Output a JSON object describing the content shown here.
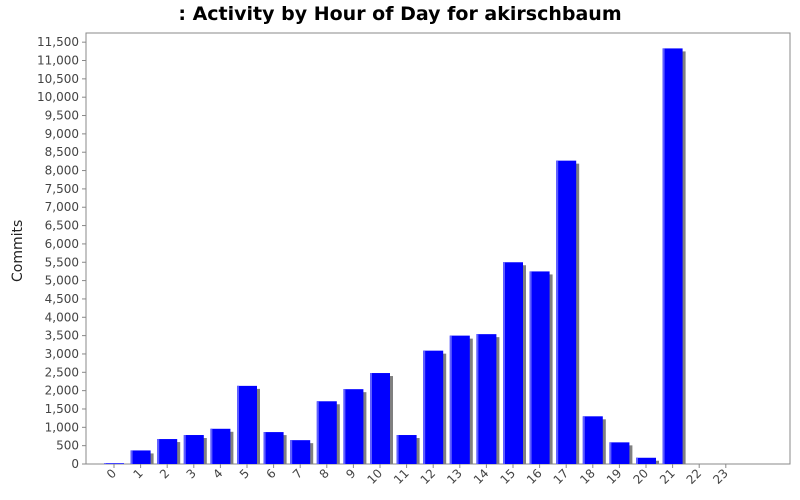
{
  "chart_data": {
    "type": "bar",
    "title": ": Activity by Hour of Day for akirschbaum",
    "xlabel": "",
    "ylabel": "Commits",
    "ylim": [
      0,
      11750
    ],
    "yticks": [
      0,
      500,
      1000,
      1500,
      2000,
      2500,
      3000,
      3500,
      4000,
      4500,
      5000,
      5500,
      6000,
      6500,
      7000,
      7500,
      8000,
      8500,
      9000,
      9500,
      10000,
      10500,
      11000,
      11500
    ],
    "categories": [
      "0",
      "1",
      "2",
      "3",
      "4",
      "5",
      "6",
      "7",
      "8",
      "9",
      "10",
      "11",
      "12",
      "13",
      "14",
      "15",
      "16",
      "17",
      "18",
      "19",
      "20",
      "21",
      "22",
      "23"
    ],
    "values": [
      20,
      370,
      680,
      790,
      960,
      2130,
      870,
      650,
      1710,
      2040,
      2480,
      790,
      3090,
      3500,
      3540,
      5500,
      5250,
      8270,
      1300,
      590,
      170,
      11330,
      0,
      0
    ],
    "colors": {
      "bar": "#0000ff",
      "shadow": "#808080",
      "axis": "#888888",
      "text": "#444444"
    }
  }
}
